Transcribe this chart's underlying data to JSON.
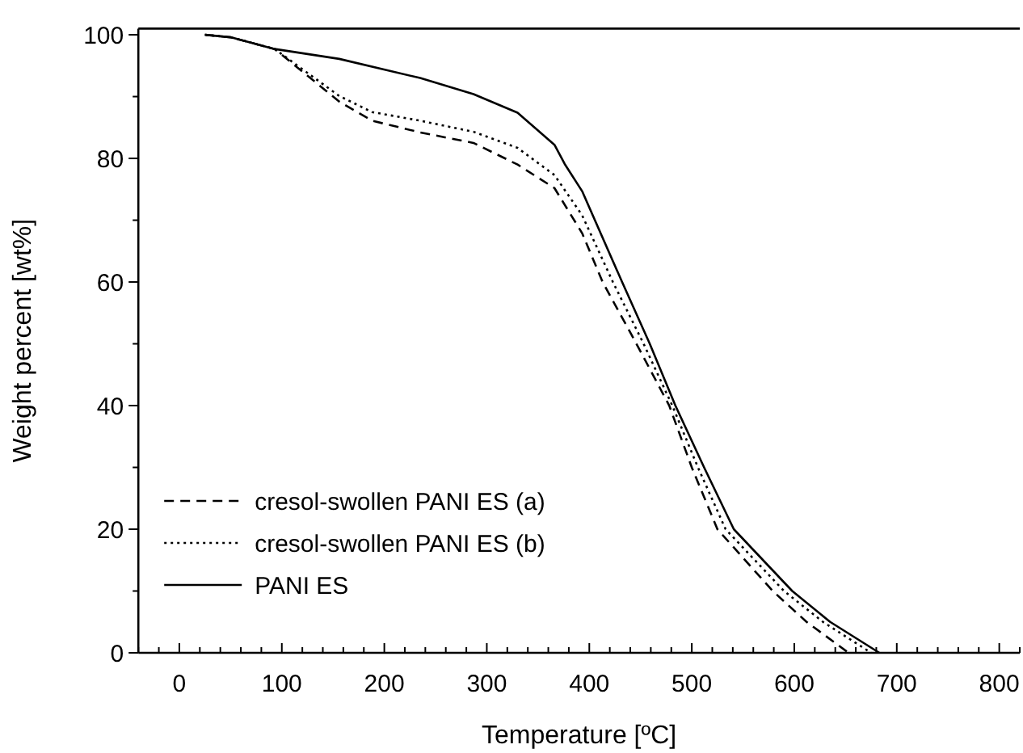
{
  "chart_data": {
    "type": "line",
    "xlabel": "Temperature [ºC]",
    "ylabel": "Weight percent [wt%]",
    "xlim": [
      -40,
      820
    ],
    "ylim": [
      0,
      101
    ],
    "xticks": [
      {
        "value": -40,
        "label": null
      },
      {
        "value": -20,
        "label": null
      },
      0,
      {
        "value": 20,
        "label": null
      },
      {
        "value": 40,
        "label": null
      },
      {
        "value": 60,
        "label": null
      },
      {
        "value": 80,
        "label": null
      },
      100,
      {
        "value": 120,
        "label": null
      },
      {
        "value": 140,
        "label": null
      },
      {
        "value": 160,
        "label": null
      },
      {
        "value": 180,
        "label": null
      },
      200,
      {
        "value": 220,
        "label": null
      },
      {
        "value": 240,
        "label": null
      },
      {
        "value": 260,
        "label": null
      },
      {
        "value": 280,
        "label": null
      },
      300,
      {
        "value": 320,
        "label": null
      },
      {
        "value": 340,
        "label": null
      },
      {
        "value": 360,
        "label": null
      },
      {
        "value": 380,
        "label": null
      },
      400,
      {
        "value": 420,
        "label": null
      },
      {
        "value": 440,
        "label": null
      },
      {
        "value": 460,
        "label": null
      },
      {
        "value": 480,
        "label": null
      },
      500,
      {
        "value": 520,
        "label": null
      },
      {
        "value": 540,
        "label": null
      },
      {
        "value": 560,
        "label": null
      },
      {
        "value": 580,
        "label": null
      },
      600,
      {
        "value": 620,
        "label": null
      },
      {
        "value": 640,
        "label": null
      },
      {
        "value": 660,
        "label": null
      },
      {
        "value": 680,
        "label": null
      },
      700,
      {
        "value": 720,
        "label": null
      },
      {
        "value": 740,
        "label": null
      },
      {
        "value": 760,
        "label": null
      },
      {
        "value": 780,
        "label": null
      },
      800,
      {
        "value": 820,
        "label": null
      }
    ],
    "yticks": [
      0,
      {
        "value": 10,
        "label": null
      },
      20,
      {
        "value": 30,
        "label": null
      },
      40,
      {
        "value": 50,
        "label": null
      },
      60,
      {
        "value": 70,
        "label": null
      },
      80,
      {
        "value": 90,
        "label": null
      },
      100
    ],
    "legend": "bottom left",
    "marker": "none",
    "grid": false,
    "series": [
      {
        "name": "cresol-swollen PANI ES (a)",
        "color": "#000000",
        "line_style": "dashed",
        "x": [
          25,
          50,
          93,
          156,
          188,
          235,
          287,
          330,
          366,
          393,
          413,
          446,
          478,
          500,
          525,
          579,
          612,
          653
        ],
        "values": [
          100,
          99.6,
          97.7,
          89.2,
          86.1,
          84.2,
          82.5,
          79,
          75.2,
          67.9,
          60,
          50,
          40,
          30,
          20,
          10,
          5,
          0
        ]
      },
      {
        "name": "cresol-swollen PANI ES (b)",
        "color": "#000000",
        "line_style": "dotted",
        "x": [
          25,
          50,
          93,
          156,
          188,
          235,
          287,
          330,
          366,
          393,
          423,
          453,
          481,
          506,
          533,
          590,
          628,
          675
        ],
        "values": [
          100,
          99.6,
          97.7,
          90.1,
          87.5,
          86.1,
          84.3,
          81.7,
          77.3,
          70.8,
          60,
          50,
          40,
          30,
          20,
          10,
          5,
          0
        ]
      },
      {
        "name": "PANI ES",
        "color": "#000000",
        "line_style": "solid",
        "x": [
          25,
          50,
          93,
          156,
          235,
          287,
          330,
          366,
          376,
          393,
          432,
          459,
          484,
          512,
          541,
          598,
          635,
          683
        ],
        "values": [
          100,
          99.6,
          97.7,
          96.1,
          93,
          90.4,
          87.4,
          82.2,
          79.1,
          74.7,
          60,
          50,
          40,
          30,
          20,
          10,
          5,
          0
        ]
      }
    ]
  }
}
